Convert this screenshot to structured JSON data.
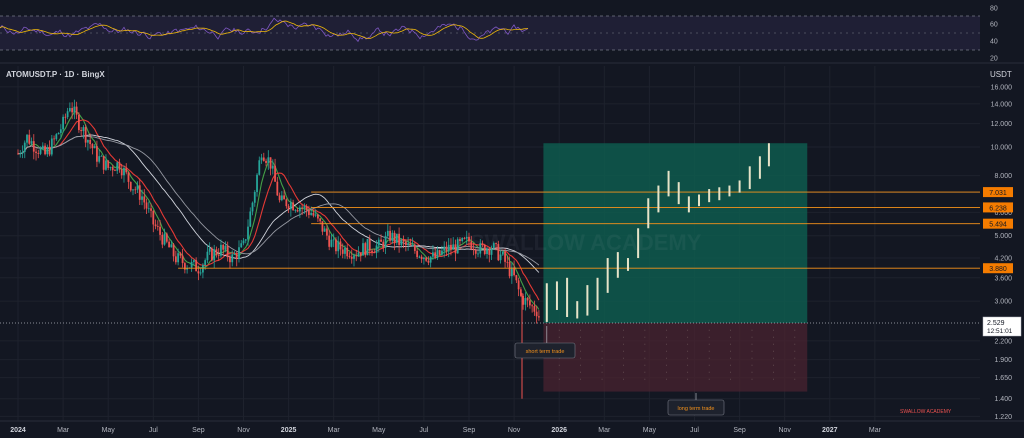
{
  "symbol": {
    "label": "ATOMUSDT.P · 1D · BingX"
  },
  "currency": "USDT",
  "watermark": "SWALLOW ACADEMY",
  "footer_brand": "SWALLOW ACADEMY",
  "current_price": {
    "value": "2.529",
    "countdown": "12:51:01"
  },
  "callouts": {
    "short": "short term trade",
    "long": "long term trade"
  },
  "levels": [
    {
      "label": "7.031",
      "value": 7.031
    },
    {
      "label": "6.238",
      "value": 6.238
    },
    {
      "label": "5.494",
      "value": 5.494
    },
    {
      "label": "3.880",
      "value": 3.88
    }
  ],
  "colors": {
    "background": "#131722",
    "candle_up": "#26a69a",
    "candle_down": "#ef5350",
    "level_line": "#f7931a",
    "level_tag": "#f57c00",
    "target_zone": "#0e5a4e",
    "stop_zone": "#4a2330",
    "rsi_line": "#7e57c2",
    "rsi_ma": "#f0b90b",
    "ma_red": "#e53935",
    "ma_green": "#43a047",
    "ma_white": "#d1d4dc"
  },
  "chart_data": [
    {
      "type": "line",
      "panel": "RSI",
      "ylim": [
        20,
        80
      ],
      "yticks": [
        80,
        60,
        40,
        20
      ],
      "series": []
    },
    {
      "type": "candlestick",
      "panel": "price",
      "scale": "log",
      "ylim": [
        1.2,
        17
      ],
      "yticks": [
        "16.000",
        "14.000",
        "12.000",
        "10.000",
        "8.000",
        "7.000",
        "6.000",
        "5.000",
        "4.200",
        "3.600",
        "3.000",
        "2.200",
        "1.900",
        "1.650",
        "1.400",
        "1.220"
      ],
      "ytick_values": [
        16,
        14,
        12,
        10,
        8,
        7,
        6,
        5,
        4.2,
        3.6,
        3.0,
        2.2,
        1.9,
        1.65,
        1.4,
        1.22
      ],
      "xticks": [
        "2024",
        "Mar",
        "May",
        "Jul",
        "Sep",
        "Nov",
        "2025",
        "Mar",
        "May",
        "Jul",
        "Sep",
        "Nov",
        "2026",
        "Mar",
        "May",
        "Jul",
        "Sep",
        "Nov",
        "2027",
        "Mar"
      ],
      "xtick_months": [
        0,
        2,
        4,
        6,
        8,
        10,
        12,
        14,
        16,
        18,
        20,
        22,
        24,
        26,
        28,
        30,
        32,
        34,
        36,
        38
      ],
      "historical_anchors": {
        "t": [
          0,
          0.4,
          0.8,
          1.2,
          1.6,
          2.0,
          2.3,
          2.6,
          3.0,
          3.5,
          4.0,
          4.5,
          5.0,
          5.5,
          6.0,
          6.5,
          7.0,
          7.5,
          8.0,
          8.5,
          9.0,
          9.5,
          10.0,
          10.4,
          10.8,
          11.2,
          11.6,
          12.0,
          12.5,
          13.0,
          13.5,
          14.0,
          14.5,
          15.0,
          15.5,
          16.0,
          16.5,
          17.0,
          17.5,
          18.0,
          18.5,
          19.0,
          19.5,
          20.0,
          20.5,
          21.0,
          21.5,
          22.0,
          22.3,
          22.7,
          23.0,
          23.2
        ],
        "price": [
          9.5,
          10.8,
          10.0,
          9.4,
          10.5,
          12.0,
          14.0,
          12.5,
          11.0,
          9.3,
          8.5,
          8.8,
          7.5,
          6.8,
          5.5,
          4.8,
          4.2,
          4.0,
          3.9,
          4.3,
          4.5,
          4.2,
          4.6,
          6.5,
          9.8,
          8.8,
          6.5,
          6.5,
          6.3,
          6.0,
          5.3,
          4.6,
          4.5,
          4.4,
          4.6,
          4.6,
          5.0,
          4.7,
          4.5,
          4.3,
          4.2,
          4.5,
          4.6,
          4.8,
          4.5,
          4.6,
          4.2,
          3.6,
          3.1,
          2.9,
          2.8,
          2.55
        ]
      },
      "projection_bars": [
        {
          "month": 23.45,
          "low": 2.55,
          "high": 3.45
        },
        {
          "month": 23.9,
          "low": 2.8,
          "high": 3.5
        },
        {
          "month": 24.35,
          "low": 2.65,
          "high": 3.6
        },
        {
          "month": 24.8,
          "low": 2.62,
          "high": 3.0
        },
        {
          "month": 25.25,
          "low": 2.68,
          "high": 3.4
        },
        {
          "month": 25.7,
          "low": 2.8,
          "high": 3.6
        },
        {
          "month": 26.15,
          "low": 3.2,
          "high": 4.2
        },
        {
          "month": 26.6,
          "low": 3.6,
          "high": 4.4
        },
        {
          "month": 27.05,
          "low": 3.8,
          "high": 4.2
        },
        {
          "month": 27.5,
          "low": 4.2,
          "high": 5.3
        },
        {
          "month": 27.95,
          "low": 5.3,
          "high": 6.7
        },
        {
          "month": 28.4,
          "low": 6.0,
          "high": 7.4
        },
        {
          "month": 28.85,
          "low": 6.8,
          "high": 8.3
        },
        {
          "month": 29.3,
          "low": 6.4,
          "high": 7.6
        },
        {
          "month": 29.75,
          "low": 6.0,
          "high": 6.8
        },
        {
          "month": 30.2,
          "low": 6.3,
          "high": 6.9
        },
        {
          "month": 30.65,
          "low": 6.5,
          "high": 7.2
        },
        {
          "month": 31.1,
          "low": 6.6,
          "high": 7.3
        },
        {
          "month": 31.55,
          "low": 6.8,
          "high": 7.4
        },
        {
          "month": 32.0,
          "low": 7.0,
          "high": 7.7
        },
        {
          "month": 32.45,
          "low": 7.2,
          "high": 8.6
        },
        {
          "month": 32.9,
          "low": 7.8,
          "high": 9.3
        },
        {
          "month": 33.3,
          "low": 8.6,
          "high": 10.3
        }
      ],
      "zones": [
        {
          "name": "target",
          "from_month": 23.3,
          "to_month": 35.0,
          "low": 2.529,
          "high": 10.3
        },
        {
          "name": "stop",
          "from_month": 23.3,
          "to_month": 35.0,
          "low": 1.48,
          "high": 2.529
        }
      ],
      "horizontal_levels": [
        7.031,
        6.238,
        5.494,
        3.88
      ],
      "current_price": 2.529
    }
  ]
}
